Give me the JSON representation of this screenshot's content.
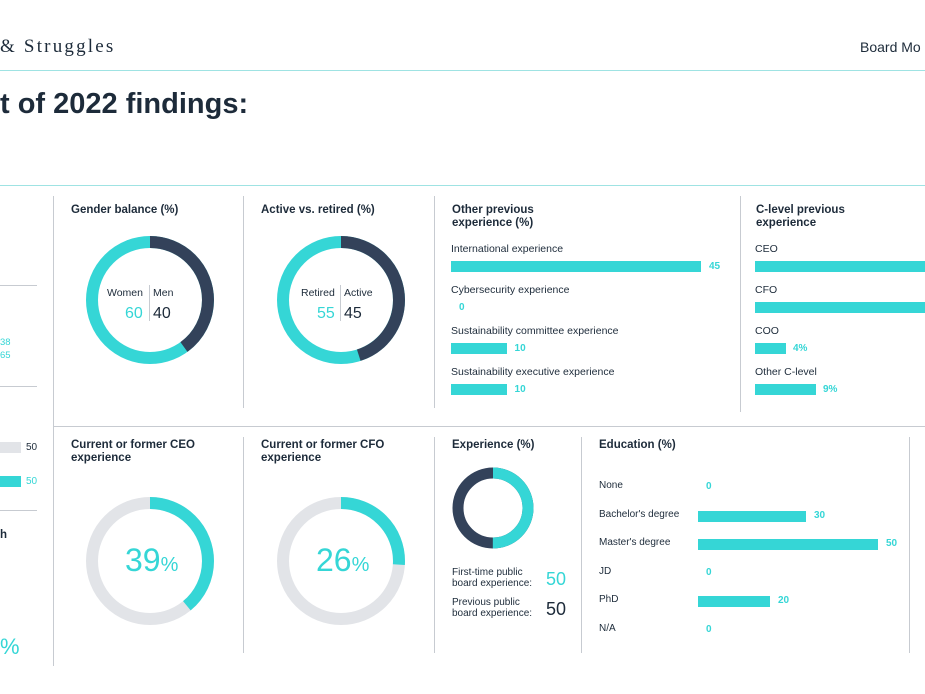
{
  "header": {
    "brand": "& Struggles",
    "section": "Board Mo"
  },
  "page_title": "t of 2022 findings:",
  "left_partial": {
    "val_a": "38",
    "val_b": "65",
    "bar_value_1": "50",
    "bar_value_2": "50",
    "heading_fragment": "h",
    "big_fragment": "%"
  },
  "gender": {
    "title": "Gender balance (%)",
    "label_a": "Women",
    "label_b": "Men",
    "value_a": "60",
    "value_b": "40",
    "fraction_a": 0.6
  },
  "active_retired": {
    "title": "Active vs. retired (%)",
    "label_a": "Retired",
    "label_b": "Active",
    "value_a": "55",
    "value_b": "45",
    "fraction_a": 0.55
  },
  "other_experience": {
    "title": "Other previous experience (%)",
    "items": [
      {
        "label": "International experience",
        "value": "45",
        "num": 45
      },
      {
        "label": "Cybersecurity experience",
        "value": "0",
        "num": 0
      },
      {
        "label": "Sustainability committee experience",
        "value": "10",
        "num": 10
      },
      {
        "label": "Sustainability executive experience",
        "value": "10",
        "num": 10
      }
    ]
  },
  "clevel": {
    "title": "C-level previous experience",
    "items": [
      {
        "label": "CEO",
        "value": ""
      },
      {
        "label": "CFO",
        "value": ""
      },
      {
        "label": "COO",
        "value": "4%"
      },
      {
        "label": "Other C-level",
        "value": "9%"
      }
    ]
  },
  "ceo": {
    "title": "Current or former CEO experience",
    "value": "39",
    "unit": "%",
    "fraction": 0.39
  },
  "cfo": {
    "title": "Current or former CFO experience",
    "value": "26",
    "unit": "%",
    "fraction": 0.26
  },
  "experience": {
    "title": "Experience (%)",
    "first_time_label": "First-time public board experience:",
    "first_time_value": "50",
    "previous_label": "Previous public board experience:",
    "previous_value": "50",
    "fraction_first": 0.5
  },
  "education": {
    "title": "Education (%)",
    "items": [
      {
        "label": "None",
        "value": "0",
        "num": 0
      },
      {
        "label": "Bachelor's degree",
        "value": "30",
        "num": 30
      },
      {
        "label": "Master's degree",
        "value": "50",
        "num": 50
      },
      {
        "label": "JD",
        "value": "0",
        "num": 0
      },
      {
        "label": "PhD",
        "value": "20",
        "num": 20
      },
      {
        "label": "N/A",
        "value": "0",
        "num": 0
      }
    ]
  },
  "colors": {
    "teal": "#35d6d6",
    "navy": "#33425a",
    "grey": "#e2e4e8"
  }
}
